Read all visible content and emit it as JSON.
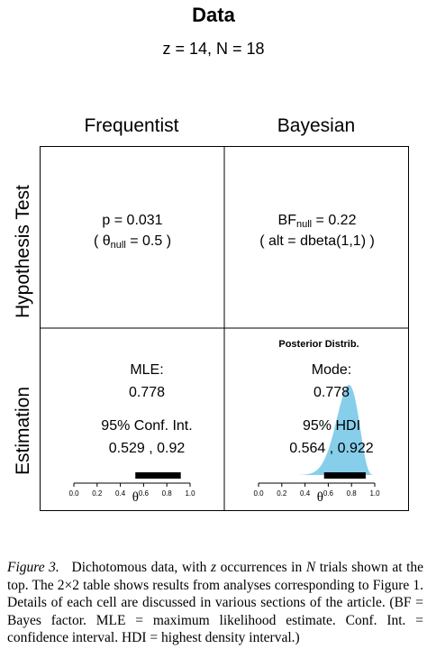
{
  "figure": {
    "title": "Data",
    "subtitle": "z = 14, N = 18",
    "columns": [
      "Frequentist",
      "Bayesian"
    ],
    "rows": [
      "Hypothesis Test",
      "Estimation"
    ],
    "cells": {
      "freq_test": {
        "line1": "p = 0.031",
        "line2_prefix": "( θ",
        "line2_sub": "null",
        "line2_suffix": " = 0.5 )"
      },
      "bayes_test": {
        "line1_prefix": "BF",
        "line1_sub": "null",
        "line1_suffix": " = 0.22",
        "line2": "( alt = dbeta(1,1) )"
      },
      "freq_est": {
        "label1": "MLE:",
        "value1": "0.778",
        "label2": "95% Conf. Int.",
        "value2": "0.529 , 0.92"
      },
      "bayes_est": {
        "plot_title": "Posterior Distrib.",
        "label1": "Mode:",
        "value1": "0.778",
        "label2": "95% HDI",
        "value2": "0.564 , 0.922"
      }
    }
  },
  "chart_data": [
    {
      "type": "interval",
      "xlabel": "θ",
      "ticks": [
        0.0,
        0.2,
        0.4,
        0.6,
        0.8,
        1.0
      ],
      "tick_labels": [
        "0.0",
        "0.2",
        "0.4",
        "0.6",
        "0.8",
        "1.0"
      ],
      "xlim": [
        0,
        1
      ],
      "interval": [
        0.529,
        0.92
      ]
    },
    {
      "type": "area",
      "title": "Posterior Distrib.",
      "xlabel": "θ",
      "ticks": [
        0.0,
        0.2,
        0.4,
        0.6,
        0.8,
        1.0
      ],
      "tick_labels": [
        "0.0",
        "0.2",
        "0.4",
        "0.6",
        "0.8",
        "1.0"
      ],
      "xlim": [
        0,
        1
      ],
      "distribution": "beta",
      "beta_params": [
        15,
        5
      ],
      "mode": 0.778,
      "interval": [
        0.564,
        0.922
      ],
      "fill_color": "#87ceeb"
    }
  ],
  "caption": {
    "label": "Figure 3.",
    "text_html_parts": [
      "Dichotomous data, with ",
      "z",
      " occurrences in ",
      "N",
      " trials shown at the top. The 2×2 table shows results from analyses corresponding to Figure 1. Details of each cell are discussed in various sections of the article. (BF = Bayes factor. MLE = maximum likelihood estimate. Conf. Int. = confidence interval. HDI = highest density interval.)"
    ]
  }
}
